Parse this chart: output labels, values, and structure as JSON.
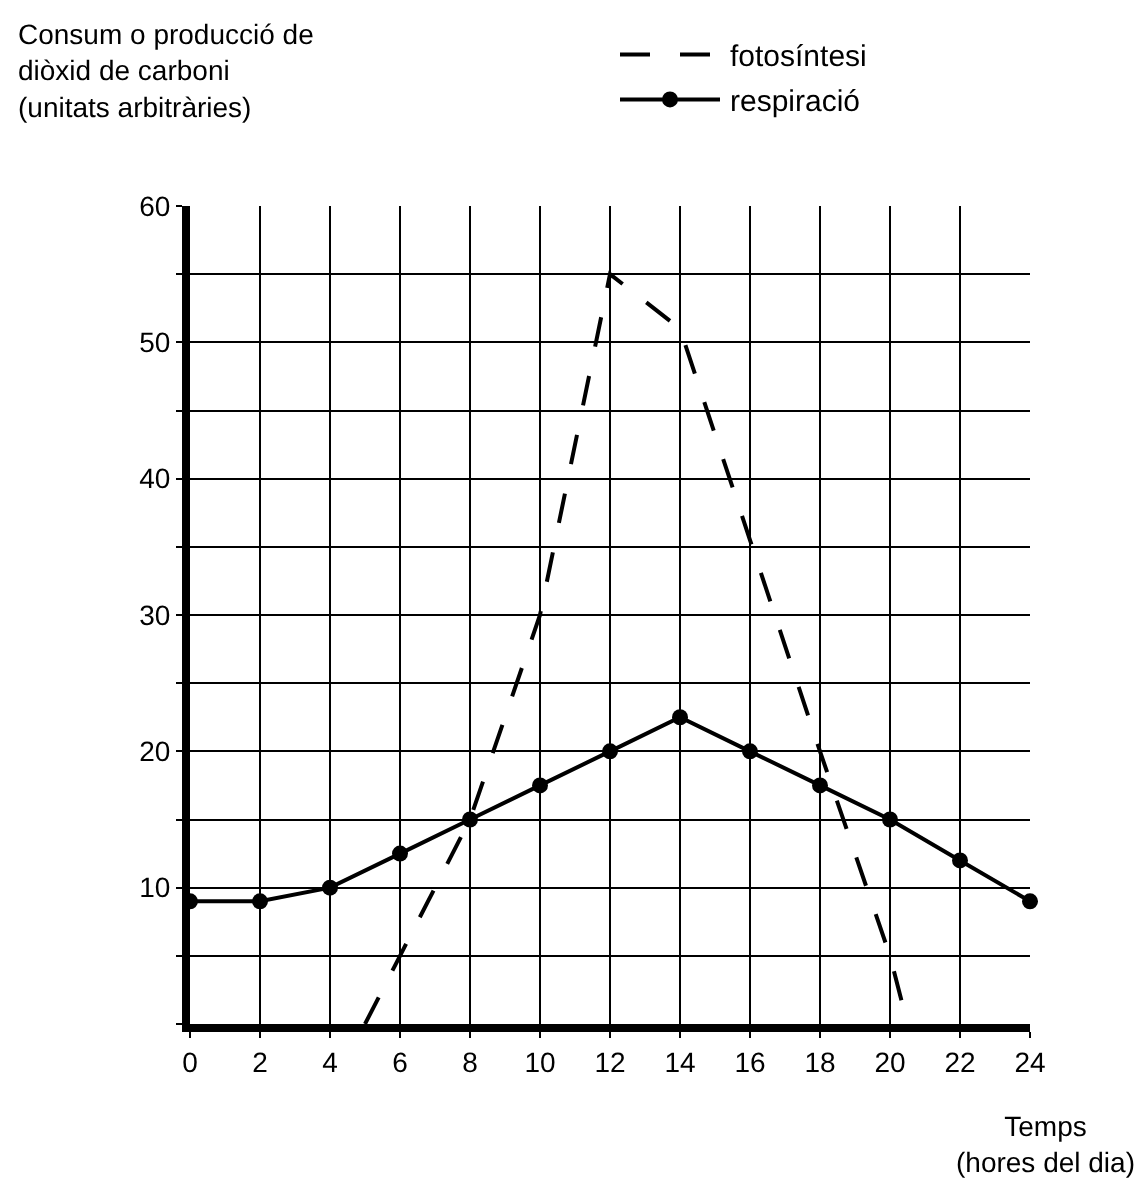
{
  "chart_data": {
    "type": "line",
    "ylabel": "Consum o producció de\ndiòxid de carboni\n(unitats arbitràries)",
    "xlabel": "Temps\n(hores del dia)",
    "xlim": [
      0,
      24
    ],
    "xticks": [
      0,
      2,
      4,
      6,
      8,
      10,
      12,
      14,
      16,
      18,
      20,
      22,
      24
    ],
    "ylim": [
      0,
      60
    ],
    "yticks": [
      {
        "value": 0,
        "label": null
      },
      {
        "value": 5,
        "label": null
      },
      10,
      {
        "value": 15,
        "label": null
      },
      20,
      {
        "value": 25,
        "label": null
      },
      30,
      {
        "value": 35,
        "label": null
      },
      40,
      {
        "value": 45,
        "label": null
      },
      50,
      {
        "value": 55,
        "label": null
      },
      60
    ],
    "grid": true,
    "legend": "top",
    "series": [
      {
        "name": "fotosíntesi",
        "color": "#000000",
        "line_style": "dashed",
        "marker": "none",
        "x": [
          5,
          6,
          8,
          10,
          12,
          14,
          16,
          18,
          20,
          20.5
        ],
        "values": [
          0,
          5,
          15,
          30,
          55,
          51,
          35.5,
          20,
          5,
          0
        ]
      },
      {
        "name": "respiració",
        "color": "#000000",
        "line_style": "solid",
        "marker": "circle",
        "x": [
          0,
          2,
          4,
          6,
          8,
          10,
          12,
          14,
          16,
          18,
          20,
          22,
          24
        ],
        "values": [
          9,
          9,
          10,
          12.5,
          15,
          17.5,
          20,
          22.5,
          20,
          17.5,
          15,
          12,
          9
        ]
      }
    ]
  }
}
